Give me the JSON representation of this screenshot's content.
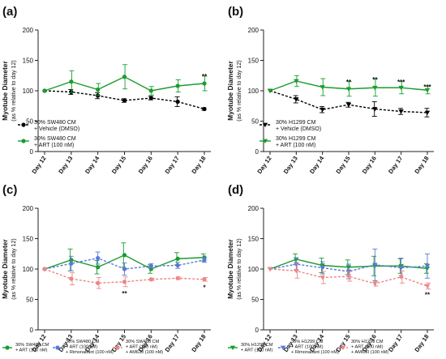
{
  "chart_data": [
    {
      "type": "line",
      "panel_label": "(a)",
      "ylabel": "Myotube Diameter",
      "ylabel2": "(as % relative to day 12)",
      "ylim": [
        0,
        200
      ],
      "yticks": [
        0,
        50,
        100,
        150,
        200
      ],
      "categories": [
        "Day 12",
        "Day 13",
        "Day 14",
        "Day 15",
        "Day 16",
        "Day 17",
        "Day 18"
      ],
      "legend_position": "bottom-left",
      "series": [
        {
          "legend_lines": [
            "30% SW480 CM",
            "+ Vehicle (DMSO)"
          ],
          "color": "#000000",
          "dashed": true,
          "marker": "circle",
          "values": [
            100,
            98,
            92,
            84,
            88,
            82,
            70
          ],
          "errors": [
            0,
            4,
            5,
            3,
            3,
            8,
            2
          ]
        },
        {
          "legend_lines": [
            "30% SW480 CM",
            "+ ART (100 nM)"
          ],
          "color": "#1a9c2e",
          "dashed": false,
          "marker": "circle",
          "values": [
            100,
            115,
            102,
            123,
            100,
            108,
            112
          ],
          "errors": [
            0,
            18,
            10,
            20,
            7,
            10,
            12
          ]
        }
      ],
      "annotations": [
        {
          "category": "Day 18",
          "text": "**",
          "value": 124
        }
      ]
    },
    {
      "type": "line",
      "panel_label": "(b)",
      "ylabel": "Myotube Diameter",
      "ylabel2": "(as % relative to day 12)",
      "ylim": [
        0,
        200
      ],
      "yticks": [
        0,
        50,
        100,
        150,
        200
      ],
      "categories": [
        "Day 12",
        "Day 13",
        "Day 14",
        "Day 15",
        "Day 16",
        "Day 17",
        "Day 18"
      ],
      "legend_position": "bottom-left",
      "series": [
        {
          "legend_lines": [
            "30% H1299 CM",
            "+ Vehicle (DMSO)"
          ],
          "color": "#000000",
          "dashed": true,
          "marker": "triangle-down",
          "values": [
            100,
            86,
            69,
            77,
            70,
            66,
            64
          ],
          "errors": [
            0,
            6,
            5,
            4,
            12,
            5,
            7
          ]
        },
        {
          "legend_lines": [
            "30% H1299 CM",
            "+ ART (100 nM)"
          ],
          "color": "#1a9c2e",
          "dashed": false,
          "marker": "triangle-down",
          "values": [
            100,
            116,
            106,
            103,
            105,
            105,
            101
          ],
          "errors": [
            0,
            9,
            14,
            12,
            14,
            10,
            6
          ]
        }
      ],
      "annotations": [
        {
          "category": "Day 15",
          "text": "**",
          "value": 115
        },
        {
          "category": "Day 16",
          "text": "**",
          "value": 119
        },
        {
          "category": "Day 17",
          "text": "***",
          "value": 115
        },
        {
          "category": "Day 18",
          "text": "***",
          "value": 107
        }
      ]
    },
    {
      "type": "line",
      "panel_label": "(c)",
      "ylabel": "Myotube Diameter",
      "ylabel2": "(as % relative to day 12)",
      "ylim": [
        0,
        200
      ],
      "yticks": [
        0,
        50,
        100,
        150,
        200
      ],
      "categories": [
        "Day 12",
        "Day 13",
        "Day 14",
        "Day 15",
        "Day 16",
        "Day 17",
        "Day 18"
      ],
      "legend_position": "bottom",
      "series": [
        {
          "legend_lines": [
            "30% SW480 CM",
            "+ ART (100 nM)"
          ],
          "color": "#1a9c2e",
          "dashed": false,
          "marker": "circle",
          "values": [
            100,
            115,
            103,
            123,
            100,
            117,
            119
          ],
          "errors": [
            0,
            18,
            11,
            20,
            7,
            10,
            6
          ]
        },
        {
          "legend_lines": [
            "30% SW480 CM",
            "+ ART (100 nM)",
            "+ Rimonabant (100 nM)"
          ],
          "color": "#5a78d8",
          "dashed": true,
          "marker": "circle",
          "values": [
            100,
            109,
            118,
            100,
            105,
            106,
            115
          ],
          "errors": [
            0,
            12,
            10,
            10,
            4,
            5,
            4
          ]
        },
        {
          "legend_lines": [
            "30% SW480 CM",
            "+ ART (100 nM)",
            "+ AM630 (100 nM)"
          ],
          "color": "#ee8585",
          "dashed": true,
          "marker": "circle",
          "values": [
            100,
            84,
            77,
            79,
            83,
            85,
            83
          ],
          "errors": [
            0,
            10,
            9,
            8,
            2,
            2,
            3
          ]
        }
      ],
      "annotations": [
        {
          "category": "Day 15",
          "text": "**",
          "value": 60
        },
        {
          "category": "Day 18",
          "text": "*",
          "value": 70
        }
      ]
    },
    {
      "type": "line",
      "panel_label": "(d)",
      "ylabel": "Myotube Diameter",
      "ylabel2": "(as % relative to day 12)",
      "ylim": [
        0,
        200
      ],
      "yticks": [
        0,
        50,
        100,
        150,
        200
      ],
      "categories": [
        "Day 12",
        "Day 13",
        "Day 14",
        "Day 15",
        "Day 16",
        "Day 17",
        "Day 18"
      ],
      "legend_position": "bottom",
      "series": [
        {
          "legend_lines": [
            "30% H1299 CM",
            "+ ART (100 nM)"
          ],
          "color": "#1a9c2e",
          "dashed": false,
          "marker": "triangle-down",
          "values": [
            100,
            116,
            106,
            103,
            105,
            105,
            101
          ],
          "errors": [
            0,
            9,
            12,
            12,
            16,
            12,
            8
          ]
        },
        {
          "legend_lines": [
            "30% H1299 CM",
            "+ ART (100 nM)",
            "+ Rimonabant (100 nM)"
          ],
          "color": "#5a78d8",
          "dashed": true,
          "marker": "triangle-down",
          "values": [
            100,
            108,
            102,
            96,
            107,
            102,
            105
          ],
          "errors": [
            0,
            10,
            10,
            12,
            26,
            16,
            20
          ]
        },
        {
          "legend_lines": [
            "30% H1299 CM",
            "+ ART (100 nM)",
            "+ AM630 (100 nM)"
          ],
          "color": "#ee8585",
          "dashed": true,
          "marker": "triangle-down",
          "values": [
            100,
            97,
            86,
            88,
            76,
            87,
            72
          ],
          "errors": [
            0,
            12,
            10,
            8,
            4,
            10,
            5
          ]
        }
      ],
      "annotations": [
        {
          "category": "Day 18",
          "text": "**",
          "value": 58
        }
      ]
    }
  ]
}
